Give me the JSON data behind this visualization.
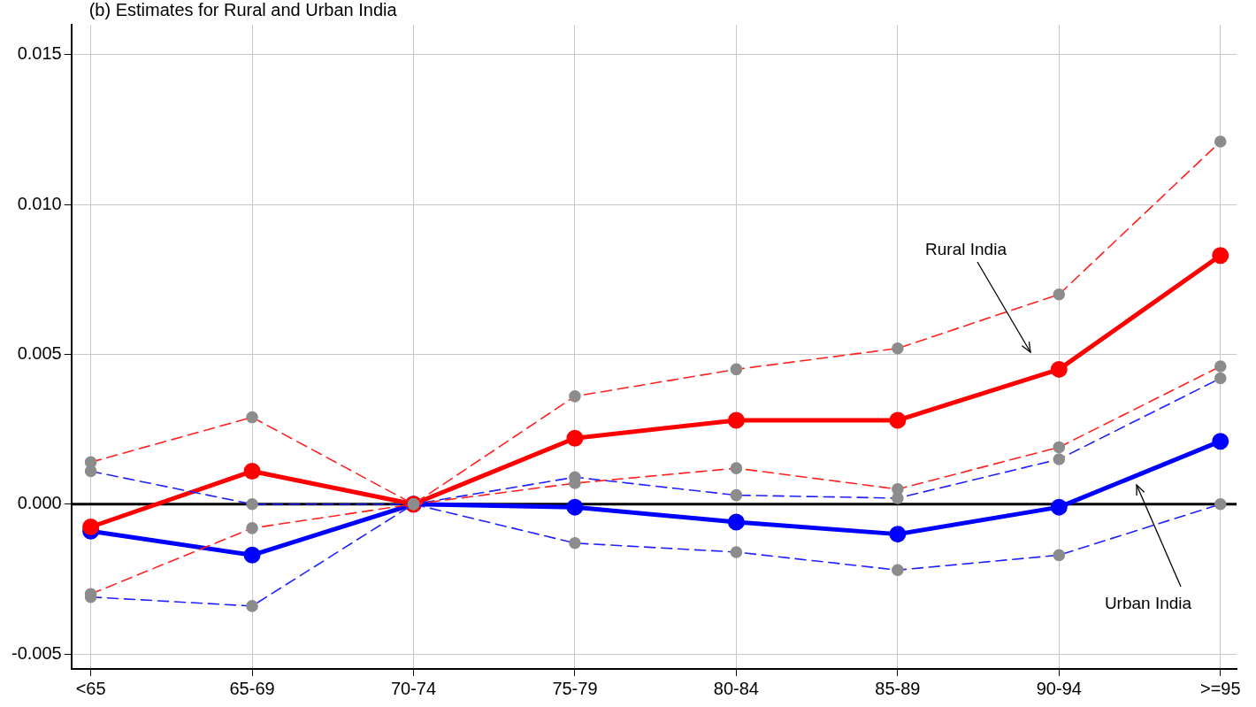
{
  "chart_data": {
    "type": "line",
    "title": "(b) Estimates for Rural and Urban India",
    "categories": [
      "<65",
      "65-69",
      "70-74",
      "75-79",
      "80-84",
      "85-89",
      "90-94",
      ">=95"
    ],
    "series": [
      {
        "color": "#ff2020",
        "colors": [
          "#8c8c8c",
          "#8c8c8c",
          "#8c8c8c",
          "#8c8c8c",
          "#8c8c8c",
          "#8c8c8c",
          "#8c8c8c",
          "#8c8c8c"
        ],
        "line_style": "dashed",
        "values": [
          0.0014,
          0.0029,
          0,
          0.0036,
          0.0045,
          0.0052,
          0.007,
          0.0121
        ]
      },
      {
        "color": "#ff2020",
        "colors": [
          "#8c8c8c",
          "#8c8c8c",
          "#8c8c8c",
          "#8c8c8c",
          "#8c8c8c",
          "#8c8c8c",
          "#8c8c8c",
          "#8c8c8c"
        ],
        "line_style": "dashed",
        "values": [
          -0.003,
          -0.0008,
          0,
          0.0007,
          0.0012,
          0.0005,
          0.0019,
          0.0046
        ]
      },
      {
        "color": "#2020ff",
        "colors": [
          "#8c8c8c",
          "#8c8c8c",
          "#8c8c8c",
          "#8c8c8c",
          "#8c8c8c",
          "#8c8c8c",
          "#8c8c8c",
          "#8c8c8c"
        ],
        "line_style": "dashed",
        "values": [
          0.0011,
          0,
          0,
          0.0009,
          0.0003,
          0.0002,
          0.0015,
          0.0042
        ]
      },
      {
        "color": "#2020ff",
        "colors": [
          "#8c8c8c",
          "#8c8c8c",
          "#8c8c8c",
          "#8c8c8c",
          "#8c8c8c",
          "#8c8c8c",
          "#8c8c8c",
          "#8c8c8c"
        ],
        "line_style": "dashed",
        "values": [
          -0.0031,
          -0.0034,
          0,
          -0.0013,
          -0.0016,
          -0.0022,
          -0.0017,
          0
        ]
      },
      {
        "color": "#ff0000",
        "line_style": "solid",
        "values": [
          -0.00076,
          0.0011,
          0,
          0.0022,
          0.0028,
          0.0028,
          0.0045,
          0.0083
        ]
      },
      {
        "color": "#0000ff",
        "line_style": "solid",
        "values": [
          -0.0009,
          -0.0017,
          0,
          -0.0001,
          -0.0006,
          -0.001,
          -0.0001,
          0.0021
        ]
      }
    ],
    "marker": "circle",
    "ylim": [
      -0.0055,
      0.016
    ],
    "yticks": [
      {
        "value": -0.005,
        "label": "-0.005"
      },
      {
        "value": 0,
        "label": "0.000"
      },
      {
        "value": 0.005,
        "label": "0.005"
      },
      {
        "value": 0.01,
        "label": "0.010"
      },
      {
        "value": 0.015,
        "label": "0.015"
      }
    ],
    "grid": true,
    "legend": false,
    "ref_lines": [
      {
        "axis": "y",
        "value": 0,
        "color": "#000000"
      }
    ],
    "annotations": [
      "Rural India",
      "Urban India"
    ]
  }
}
